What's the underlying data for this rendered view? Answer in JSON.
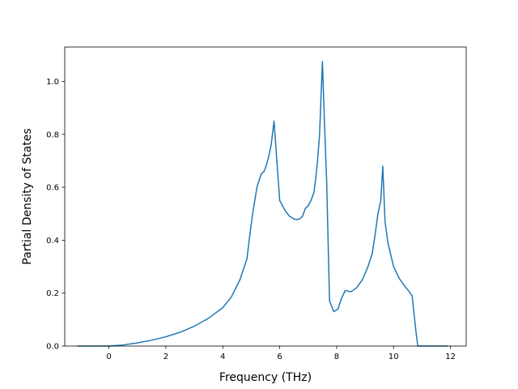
{
  "chart_data": {
    "type": "line",
    "title": "",
    "xlabel": "Frequency (THz)",
    "ylabel": "Partial Density of States",
    "xlim": [
      -1.55,
      12.55
    ],
    "ylim": [
      0.0,
      1.13
    ],
    "grid": false,
    "legend": "none",
    "xticks": [
      0,
      2,
      4,
      6,
      8,
      10,
      12
    ],
    "xtick_labels": [
      "0",
      "2",
      "4",
      "6",
      "8",
      "10",
      "12"
    ],
    "yticks": [
      0.0,
      0.2,
      0.4,
      0.6,
      0.8,
      1.0
    ],
    "ytick_labels": [
      "0.0",
      "0.2",
      "0.4",
      "0.6",
      "0.8",
      "1.0"
    ],
    "series": [
      {
        "color": "#1f77b4",
        "x": [
          -1.1,
          0.0,
          0.5,
          1.0,
          1.5,
          2.0,
          2.5,
          3.0,
          3.5,
          4.0,
          4.3,
          4.6,
          4.85,
          4.95,
          5.05,
          5.2,
          5.35,
          5.45,
          5.52,
          5.6,
          5.7,
          5.8,
          6.0,
          6.2,
          6.35,
          6.5,
          6.6,
          6.7,
          6.8,
          6.9,
          7.0,
          7.1,
          7.2,
          7.25,
          7.32,
          7.4,
          7.5,
          7.58,
          7.65,
          7.75,
          7.9,
          8.05,
          8.15,
          8.3,
          8.5,
          8.7,
          8.9,
          9.1,
          9.25,
          9.35,
          9.45,
          9.55,
          9.62,
          9.7,
          9.8,
          10.0,
          10.2,
          10.4,
          10.55,
          10.65,
          10.72,
          10.78,
          10.85,
          11.2,
          11.9
        ],
        "y": [
          0.0,
          0.0,
          0.004,
          0.012,
          0.022,
          0.035,
          0.052,
          0.075,
          0.105,
          0.145,
          0.185,
          0.25,
          0.33,
          0.42,
          0.5,
          0.6,
          0.65,
          0.66,
          0.68,
          0.71,
          0.76,
          0.85,
          0.55,
          0.51,
          0.49,
          0.48,
          0.478,
          0.48,
          0.49,
          0.52,
          0.53,
          0.55,
          0.58,
          0.62,
          0.69,
          0.8,
          1.075,
          0.82,
          0.62,
          0.17,
          0.13,
          0.14,
          0.175,
          0.21,
          0.205,
          0.22,
          0.25,
          0.3,
          0.35,
          0.42,
          0.5,
          0.55,
          0.68,
          0.47,
          0.39,
          0.3,
          0.255,
          0.225,
          0.205,
          0.19,
          0.12,
          0.06,
          0.0,
          0.0,
          0.0
        ]
      }
    ]
  }
}
